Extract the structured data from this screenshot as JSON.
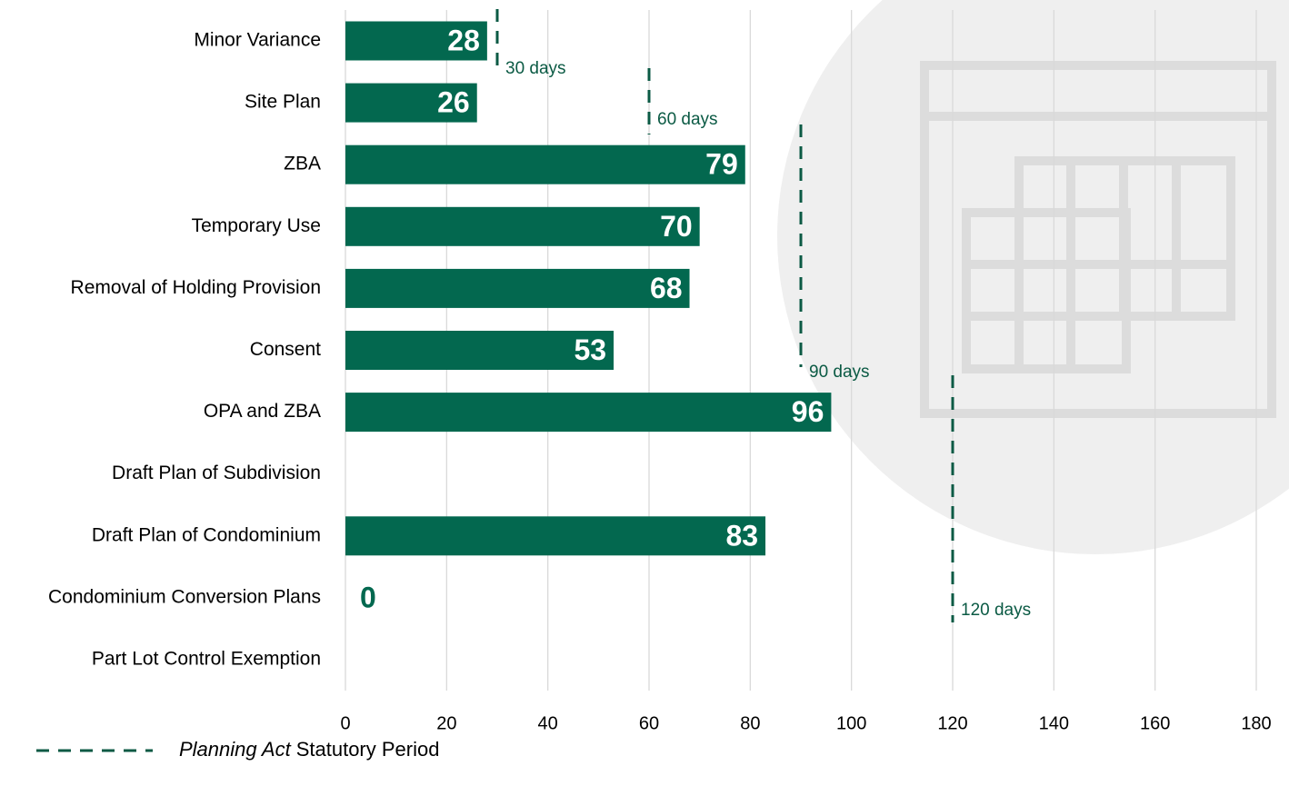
{
  "chart_data": {
    "type": "hbar",
    "categories": [
      "Minor Variance",
      "Site Plan",
      "ZBA",
      "Temporary Use",
      "Removal of Holding Provision",
      "Consent",
      "OPA and ZBA",
      "Draft Plan of Subdivision",
      "Draft Plan of Condominium",
      "Condominium Conversion Plans",
      "Part Lot Control Exemption"
    ],
    "values": [
      28,
      26,
      79,
      70,
      68,
      53,
      96,
      null,
      83,
      0,
      null
    ],
    "color": "#03684f",
    "xlim": [
      0,
      180
    ],
    "xticks": [
      0,
      20,
      40,
      60,
      80,
      100,
      120,
      140,
      160,
      180
    ],
    "grid": true,
    "reference_lines": [
      {
        "value": 30,
        "label": "30 days"
      },
      {
        "value": 60,
        "label": "60 days"
      },
      {
        "value": 90,
        "label": "90 days"
      },
      {
        "value": 120,
        "label": "120 days"
      }
    ],
    "reference_color": "#0b5a44",
    "reference_legend": {
      "emphasis": "Planning Act",
      "text": "Statutory Period"
    }
  }
}
